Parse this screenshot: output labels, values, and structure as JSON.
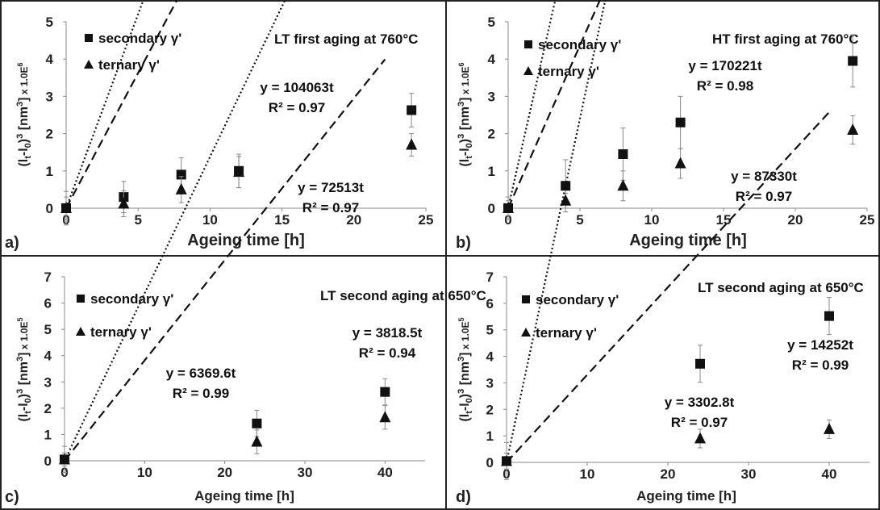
{
  "chart_data": [
    {
      "type": "scatter",
      "panel_label": "a)",
      "title": "LT first aging at 760°C",
      "xlabel": "Ageing time [h]",
      "ylabel": "(l_t-l_0)^3 [nm^3]  x 1.0E^6",
      "ylabel_parts": {
        "pre": "(l",
        "s1": "t",
        "mid": "-l",
        "s2": "0",
        "post": ")",
        "sup": "3",
        "unit": " [nm",
        "unitsup": "3",
        "unitend": "]",
        "mult": "  x 1.0E",
        "multsup": "6"
      },
      "xlim": [
        0,
        25
      ],
      "ylim": [
        0,
        5
      ],
      "xticks": [
        0,
        5,
        10,
        15,
        20,
        25
      ],
      "yticks": [
        0,
        1,
        2,
        3,
        4,
        5
      ],
      "series": [
        {
          "name": "secondary γ'",
          "marker": "square",
          "line": "dotted",
          "x": [
            0,
            4,
            8,
            12,
            24
          ],
          "y": [
            0,
            0.3,
            0.9,
            1.0,
            2.63
          ],
          "err": [
            0.45,
            0.42,
            0.45,
            0.45,
            0.45
          ],
          "slope": 0.104063,
          "equation": "y = 104063t",
          "r2": "R² = 0.97"
        },
        {
          "name": "ternary γ'",
          "marker": "triangle",
          "line": "dashed",
          "x": [
            0,
            4,
            8,
            12,
            24
          ],
          "y": [
            0,
            0.12,
            0.5,
            0.97,
            1.7
          ],
          "err": [
            0.3,
            0.35,
            0.35,
            0.42,
            0.3
          ],
          "slope": 0.072513,
          "equation": "y = 72513t",
          "r2": "R² = 0.97"
        }
      ]
    },
    {
      "type": "scatter",
      "panel_label": "b)",
      "title": "HT first aging at 760°C",
      "xlabel": "Ageing time [h]",
      "ylabel": "(l_t-l_0)^3 [nm^3]  x 1.0E^6",
      "ylabel_parts": {
        "pre": "(l",
        "s1": "t",
        "mid": "-l",
        "s2": "0",
        "post": ")",
        "sup": "3",
        "unit": " [nm",
        "unitsup": "3",
        "unitend": "]",
        "mult": "  x 1.0E",
        "multsup": "6"
      },
      "xlim": [
        0,
        25
      ],
      "ylim": [
        0,
        5
      ],
      "xticks": [
        0,
        5,
        10,
        15,
        20,
        25
      ],
      "yticks": [
        0,
        1,
        2,
        3,
        4,
        5
      ],
      "series": [
        {
          "name": "secondary γ'",
          "marker": "square",
          "line": "dotted",
          "x": [
            0,
            4,
            8,
            12,
            24
          ],
          "y": [
            0,
            0.6,
            1.45,
            2.3,
            3.95
          ],
          "err": [
            0.3,
            0.7,
            0.7,
            0.7,
            0.7
          ],
          "slope": 0.170221,
          "equation": "y = 170221t",
          "r2": "R² = 0.98"
        },
        {
          "name": "ternary γ'",
          "marker": "triangle",
          "line": "dashed",
          "x": [
            0,
            4,
            8,
            12,
            24
          ],
          "y": [
            0,
            0.2,
            0.6,
            1.2,
            2.1
          ],
          "err": [
            0.2,
            0.2,
            0.4,
            0.4,
            0.38
          ],
          "slope": 0.08733,
          "equation": "y = 87330t",
          "r2": "R² = 0.97"
        }
      ]
    },
    {
      "type": "scatter",
      "panel_label": "c)",
      "title": "LT second aging at 650°C",
      "xlabel": "Ageing time [h]",
      "ylabel": "(l_t-l_0)^3 [nm^3]  x 1.0E^5",
      "ylabel_parts": {
        "pre": "(l",
        "s1": "t",
        "mid": "-l",
        "s2": "0",
        "post": ")",
        "sup": "3",
        "unit": " [nm",
        "unitsup": "3",
        "unitend": "]",
        "mult": "  x 1.0E",
        "multsup": "5"
      },
      "xlim": [
        0,
        45
      ],
      "ylim": [
        0,
        7
      ],
      "xticks": [
        0,
        10,
        20,
        30,
        40
      ],
      "yticks": [
        0,
        1,
        2,
        3,
        4,
        5,
        6,
        7
      ],
      "series": [
        {
          "name": "secondary γ'",
          "marker": "square",
          "line": "dotted",
          "x": [
            0,
            24,
            40
          ],
          "y": [
            0.05,
            1.42,
            2.62
          ],
          "err": [
            0.5,
            0.5,
            0.5
          ],
          "slope": 0.063696,
          "equation": "y = 6369.6t",
          "r2": "R² = 0.99"
        },
        {
          "name": "ternary γ'",
          "marker": "triangle",
          "line": "dashed",
          "x": [
            0,
            24,
            40
          ],
          "y": [
            0.05,
            0.72,
            1.65
          ],
          "err": [
            0.25,
            0.45,
            0.45
          ],
          "slope": 0.038185,
          "equation": "y = 3818.5t",
          "r2": "R² = 0.94"
        }
      ]
    },
    {
      "type": "scatter",
      "panel_label": "d)",
      "title": "LT second aging at 650°C",
      "xlabel": "Ageing time [h]",
      "ylabel": "(l_t-l_0)^3 [nm^3]  x 1.0E^5",
      "ylabel_parts": {
        "pre": "(l",
        "s1": "t",
        "mid": "-l",
        "s2": "0",
        "post": ")",
        "sup": "3",
        "unit": " [nm",
        "unitsup": "3",
        "unitend": "]",
        "mult": "  x 1.0E",
        "multsup": "5"
      },
      "xlim": [
        0,
        45
      ],
      "ylim": [
        0,
        7
      ],
      "xticks": [
        0,
        10,
        20,
        30,
        40
      ],
      "yticks": [
        0,
        1,
        2,
        3,
        4,
        5,
        6,
        7
      ],
      "series": [
        {
          "name": "secondary γ'",
          "marker": "square",
          "line": "dotted",
          "x": [
            0,
            24,
            40
          ],
          "y": [
            0.05,
            3.72,
            5.52
          ],
          "err": [
            0.7,
            0.7,
            0.7
          ],
          "slope": 0.14252,
          "equation": "y = 14252t",
          "r2": "R² = 0.99"
        },
        {
          "name": "ternary γ'",
          "marker": "triangle",
          "line": "dashed",
          "x": [
            0,
            24,
            40
          ],
          "y": [
            0.05,
            0.9,
            1.25
          ],
          "err": [
            0.3,
            0.35,
            0.35
          ],
          "slope": 0.033028,
          "equation": "y = 3302.8t",
          "r2": "R² = 0.97"
        }
      ]
    }
  ]
}
